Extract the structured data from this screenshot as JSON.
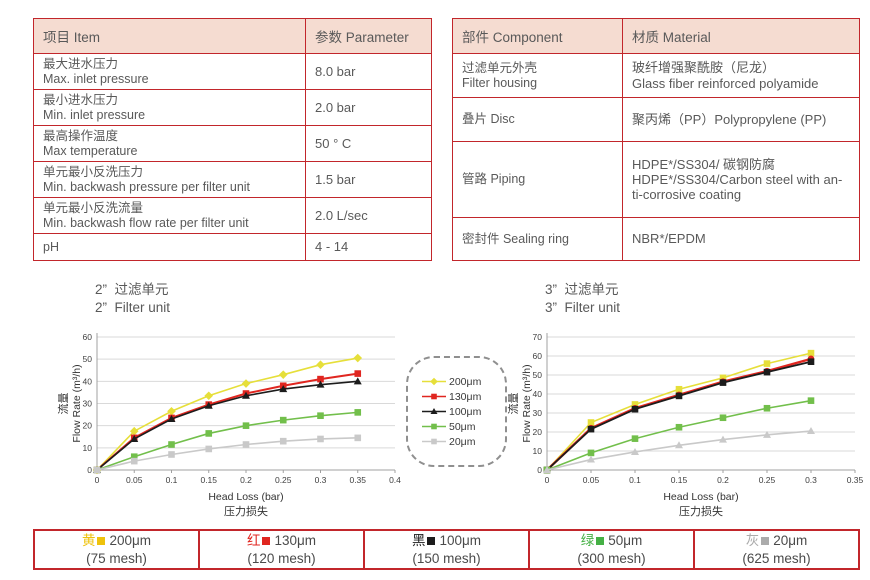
{
  "spec_table": {
    "headers": [
      "项目 Item",
      "参数 Parameter"
    ],
    "rows": [
      {
        "item_lines": [
          "最大进水压力",
          "Max. inlet pressure"
        ],
        "value": "8.0 bar"
      },
      {
        "item_lines": [
          "最小进水压力",
          "Min. inlet pressure"
        ],
        "value": "2.0 bar"
      },
      {
        "item_lines": [
          "最高操作温度",
          "Max temperature"
        ],
        "value": "50 ° C"
      },
      {
        "item_lines": [
          "单元最小反洗压力",
          "Min. backwash pressure per filter unit"
        ],
        "value": "1.5 bar"
      },
      {
        "item_lines": [
          "单元最小反洗流量",
          "Min. backwash flow rate per filter unit"
        ],
        "value": "2.0 L/sec"
      },
      {
        "item_lines": [
          "pH"
        ],
        "value": "4 - 14"
      }
    ]
  },
  "material_table": {
    "headers": [
      "部件 Component",
      "材质 Material"
    ],
    "rows": [
      {
        "component_lines": [
          "过滤单元外壳",
          "Filter housing"
        ],
        "material_lines": [
          "玻纤增强聚酰胺（尼龙）",
          "Glass fiber reinforced polyamide"
        ]
      },
      {
        "component_lines": [
          "叠片 Disc"
        ],
        "material_lines": [
          "聚丙烯（PP）Polypropylene (PP)"
        ]
      },
      {
        "component_lines": [
          "管路 Piping"
        ],
        "material_lines": [
          "HDPE*/SS304/ 碳钢防腐",
          "HDPE*/SS304/Carbon steel with an-",
          "ti-corrosive coating"
        ]
      },
      {
        "component_lines": [
          "密封件 Sealing ring"
        ],
        "material_lines": [
          "NBR*/EPDM"
        ]
      }
    ]
  },
  "chart_data": [
    {
      "type": "line",
      "title_zh": "2”  过滤单元",
      "title_en": "2”  Filter unit",
      "xlabel": "Head Loss (bar)",
      "xlabel_zh": "压力损失",
      "ylabel_zh": "流量",
      "ylabel": "Flow Rate (m³/h)",
      "xlim": [
        0,
        0.4
      ],
      "ylim": [
        0,
        60
      ],
      "xticks": [
        0,
        0.05,
        0.1,
        0.15,
        0.2,
        0.25,
        0.3,
        0.35,
        0.4
      ],
      "yticks": [
        0,
        10,
        20,
        30,
        40,
        50,
        60
      ],
      "grid": true,
      "legend_position": "center-right-box",
      "x": [
        0,
        0.05,
        0.1,
        0.15,
        0.2,
        0.25,
        0.3,
        0.35
      ],
      "series": [
        {
          "name": "200μm",
          "color": "#e6df3a",
          "marker": "diamond",
          "lw": 1.6,
          "values": [
            0,
            17.5,
            26.5,
            33.5,
            39,
            43,
            47.5,
            50.5
          ]
        },
        {
          "name": "130μm",
          "color": "#e02620",
          "marker": "square",
          "lw": 2.0,
          "values": [
            0,
            14.5,
            23.5,
            29.5,
            34.5,
            38,
            41,
            43.5
          ]
        },
        {
          "name": "100μm",
          "color": "#1c1c1c",
          "marker": "triangle",
          "lw": 1.6,
          "values": [
            0,
            14,
            23,
            29,
            33.5,
            36.5,
            38.5,
            40
          ]
        },
        {
          "name": "50μm",
          "color": "#72bf4b",
          "marker": "square",
          "lw": 1.6,
          "values": [
            0,
            6,
            11.5,
            16.5,
            20,
            22.5,
            24.5,
            26
          ]
        },
        {
          "name": "20μm",
          "color": "#c9c9c9",
          "marker": "square",
          "lw": 1.6,
          "values": [
            0,
            4,
            7,
            9.5,
            11.5,
            13,
            14,
            14.5
          ]
        }
      ]
    },
    {
      "type": "line",
      "title_zh": "3”  过滤单元",
      "title_en": "3”  Filter unit",
      "xlabel": "Head Loss (bar)",
      "xlabel_zh": "压力损失",
      "ylabel_zh": "流量",
      "ylabel": "Flow Rate (m³/h)",
      "xlim": [
        0,
        0.35
      ],
      "ylim": [
        0,
        70
      ],
      "xticks": [
        0,
        0.05,
        0.1,
        0.15,
        0.2,
        0.25,
        0.3,
        0.35
      ],
      "yticks": [
        0,
        10,
        20,
        30,
        40,
        50,
        60,
        70
      ],
      "grid": true,
      "legend_position": "center-left-box",
      "x": [
        0,
        0.05,
        0.1,
        0.15,
        0.2,
        0.25,
        0.3
      ],
      "series": [
        {
          "name": "200μm",
          "color": "#e6df3a",
          "marker": "square",
          "lw": 1.6,
          "values": [
            0,
            25,
            34.5,
            42.5,
            48.5,
            56,
            61.5
          ]
        },
        {
          "name": "130μm",
          "color": "#e02620",
          "marker": "circle",
          "lw": 2.4,
          "values": [
            0,
            22,
            32.5,
            39.5,
            46.5,
            52,
            58.5
          ]
        },
        {
          "name": "100μm",
          "color": "#1c1c1c",
          "marker": "square",
          "lw": 1.8,
          "values": [
            0,
            21.5,
            32,
            39,
            46,
            51.5,
            57
          ]
        },
        {
          "name": "50μm",
          "color": "#72bf4b",
          "marker": "square",
          "lw": 1.6,
          "values": [
            0,
            9,
            16.5,
            22.5,
            27.5,
            32.5,
            36.5
          ]
        },
        {
          "name": "20μm",
          "color": "#c9c9c9",
          "marker": "triangle",
          "lw": 1.6,
          "values": [
            0,
            5.5,
            9.5,
            13,
            16,
            18.5,
            20.5
          ]
        }
      ]
    }
  ],
  "center_legend": {
    "items": [
      {
        "label": "200μm",
        "color": "#e6df3a",
        "marker": "diamond"
      },
      {
        "label": "130μm",
        "color": "#e02620",
        "marker": "square"
      },
      {
        "label": "100μm",
        "color": "#1c1c1c",
        "marker": "triangle"
      },
      {
        "label": "50μm",
        "color": "#72bf4b",
        "marker": "square"
      },
      {
        "label": "20μm",
        "color": "#c9c9c9",
        "marker": "square"
      }
    ]
  },
  "legend_bar": {
    "items": [
      {
        "name_zh": "黄",
        "size": "200μm",
        "mesh": "(75 mesh)",
        "color": "#eec20c"
      },
      {
        "name_zh": "红",
        "size": "130μm",
        "mesh": "(120 mesh)",
        "color": "#e02620"
      },
      {
        "name_zh": "黑",
        "size": "100μm",
        "mesh": "(150 mesh)",
        "color": "#1c1c1c"
      },
      {
        "name_zh": "绿",
        "size": "50μm",
        "mesh": "(300 mesh)",
        "color": "#45b045"
      },
      {
        "name_zh": "灰",
        "size": "20μm",
        "mesh": "(625 mesh)",
        "color": "#ababab"
      }
    ]
  },
  "colors": {
    "table_border": "#c2262b",
    "table_header_bg": "#f5dcd1",
    "text": "#595959",
    "gridline": "#d9d9d9",
    "axis": "#a0a0a0"
  }
}
